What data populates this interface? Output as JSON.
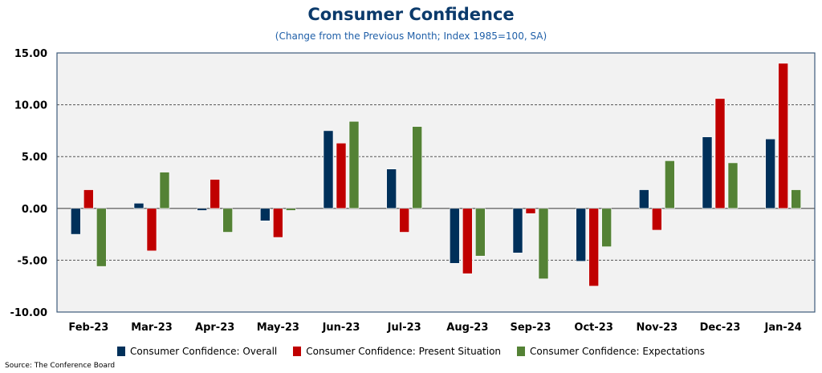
{
  "chart_data": {
    "type": "bar",
    "title": "Consumer Confidence",
    "subtitle": "(Change from the Previous Month; Index 1985=100, SA)",
    "xlabel": "",
    "ylabel": "",
    "ylim": [
      -10,
      15
    ],
    "yticks": [
      15,
      10,
      5,
      0,
      -5,
      -10
    ],
    "ytick_labels": [
      "15.00",
      "10.00",
      "5.00",
      "0.00",
      "-5.00",
      "-10.00"
    ],
    "grid": true,
    "legend_position": "bottom",
    "categories": [
      "Feb-23",
      "Mar-23",
      "Apr-23",
      "May-23",
      "Jun-23",
      "Jul-23",
      "Aug-23",
      "Sep-23",
      "Oct-23",
      "Nov-23",
      "Dec-23",
      "Jan-24"
    ],
    "series": [
      {
        "name": "Consumer Confidence: Overall",
        "color": "#00305A",
        "values": [
          -2.5,
          0.5,
          -0.2,
          -1.2,
          7.5,
          3.8,
          -5.3,
          -4.3,
          -5.1,
          1.8,
          6.9,
          6.7
        ]
      },
      {
        "name": "Consumer Confidence: Present Situation",
        "color": "#C00000",
        "values": [
          1.8,
          -4.1,
          2.8,
          -2.8,
          6.3,
          -2.3,
          -6.3,
          -0.5,
          -7.5,
          -2.1,
          10.6,
          14.0
        ]
      },
      {
        "name": "Consumer Confidence: Expectations",
        "color": "#548235",
        "values": [
          -5.6,
          3.5,
          -2.3,
          -0.2,
          8.4,
          7.9,
          -4.6,
          -6.8,
          -3.7,
          4.6,
          4.4,
          1.8
        ]
      }
    ]
  },
  "source": "Source: The Conference Board"
}
